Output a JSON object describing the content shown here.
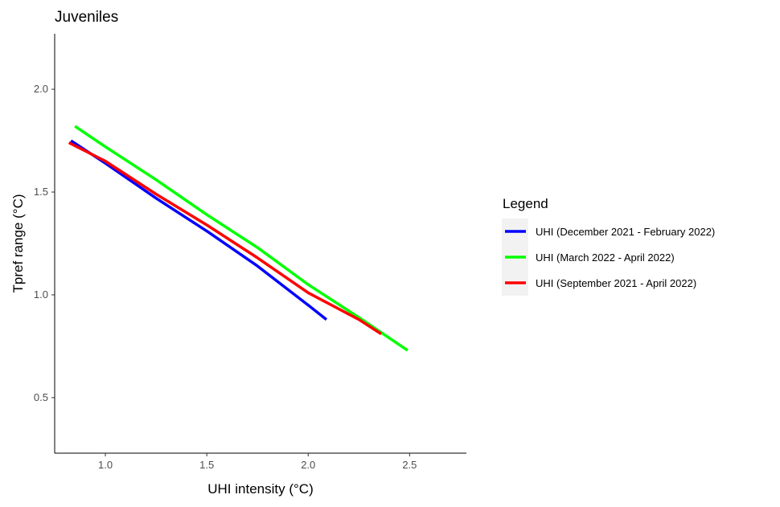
{
  "chart_data": {
    "type": "line",
    "title": "Juveniles",
    "xlabel": "UHI intensity (°C)",
    "ylabel": "Tpref range (°C)",
    "xlim": [
      0.75,
      2.78
    ],
    "ylim": [
      0.23,
      2.27
    ],
    "xticks": [
      1.0,
      1.5,
      2.0,
      2.5
    ],
    "xtick_labels": [
      "1.0",
      "1.5",
      "2.0",
      "2.5"
    ],
    "yticks": [
      0.5,
      1.0,
      1.5,
      2.0
    ],
    "ytick_labels": [
      "0.5",
      "1.0",
      "1.5",
      "2.0"
    ],
    "grid": false,
    "legend": {
      "title": "Legend",
      "position": "right"
    },
    "series": [
      {
        "name": "UHI (December 2021 - February 2022)",
        "color": "#0000ff",
        "x": [
          0.83,
          1.0,
          1.25,
          1.5,
          1.75,
          2.0,
          2.09
        ],
        "y": [
          1.75,
          1.64,
          1.47,
          1.31,
          1.14,
          0.95,
          0.88
        ]
      },
      {
        "name": "UHI (March 2022 - April 2022)",
        "color": "#00ff00",
        "x": [
          0.85,
          1.0,
          1.25,
          1.5,
          1.75,
          2.0,
          2.25,
          2.49
        ],
        "y": [
          1.82,
          1.72,
          1.56,
          1.39,
          1.23,
          1.05,
          0.89,
          0.73
        ]
      },
      {
        "name": "UHI (September 2021 - April 2022)",
        "color": "#ff0000",
        "x": [
          0.82,
          1.0,
          1.25,
          1.5,
          1.75,
          2.0,
          2.25,
          2.36
        ],
        "y": [
          1.74,
          1.65,
          1.49,
          1.34,
          1.18,
          1.01,
          0.88,
          0.81
        ]
      }
    ]
  }
}
